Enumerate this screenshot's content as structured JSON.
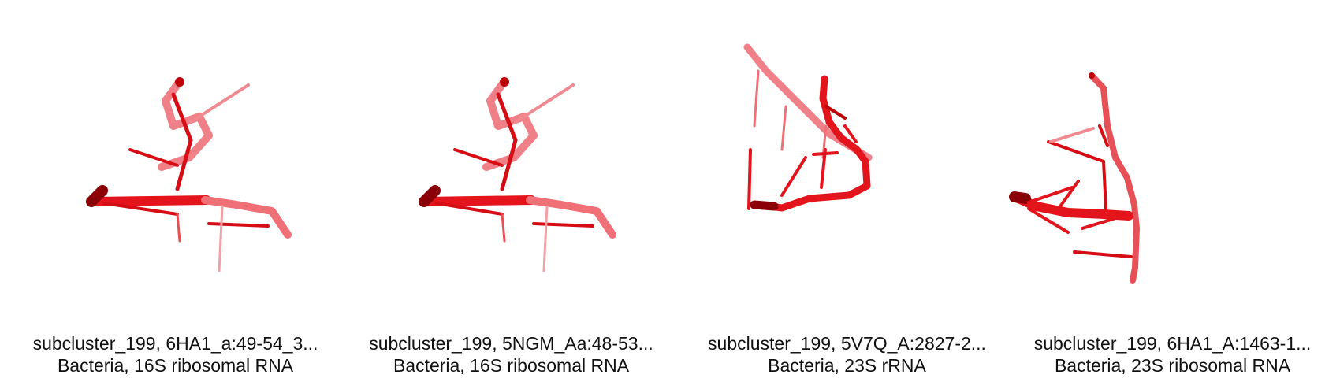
{
  "colors": {
    "structure": "#e3141b",
    "dark": "#8a0006",
    "light": "#f07078"
  },
  "panels": [
    {
      "line1": "subcluster_199, 6HA1_a:49-54_3...",
      "line2": "Bacteria, 16S ribosomal RNA",
      "image": "rna-structure-render"
    },
    {
      "line1": "subcluster_199, 5NGM_Aa:48-53...",
      "line2": "Bacteria, 16S ribosomal RNA",
      "image": "rna-structure-render"
    },
    {
      "line1": "subcluster_199, 5V7Q_A:2827-2...",
      "line2": "Bacteria, 23S rRNA",
      "image": "rna-structure-render"
    },
    {
      "line1": "subcluster_199, 6HA1_A:1463-1...",
      "line2": "Bacteria, 23S ribosomal RNA",
      "image": "rna-structure-render"
    }
  ]
}
